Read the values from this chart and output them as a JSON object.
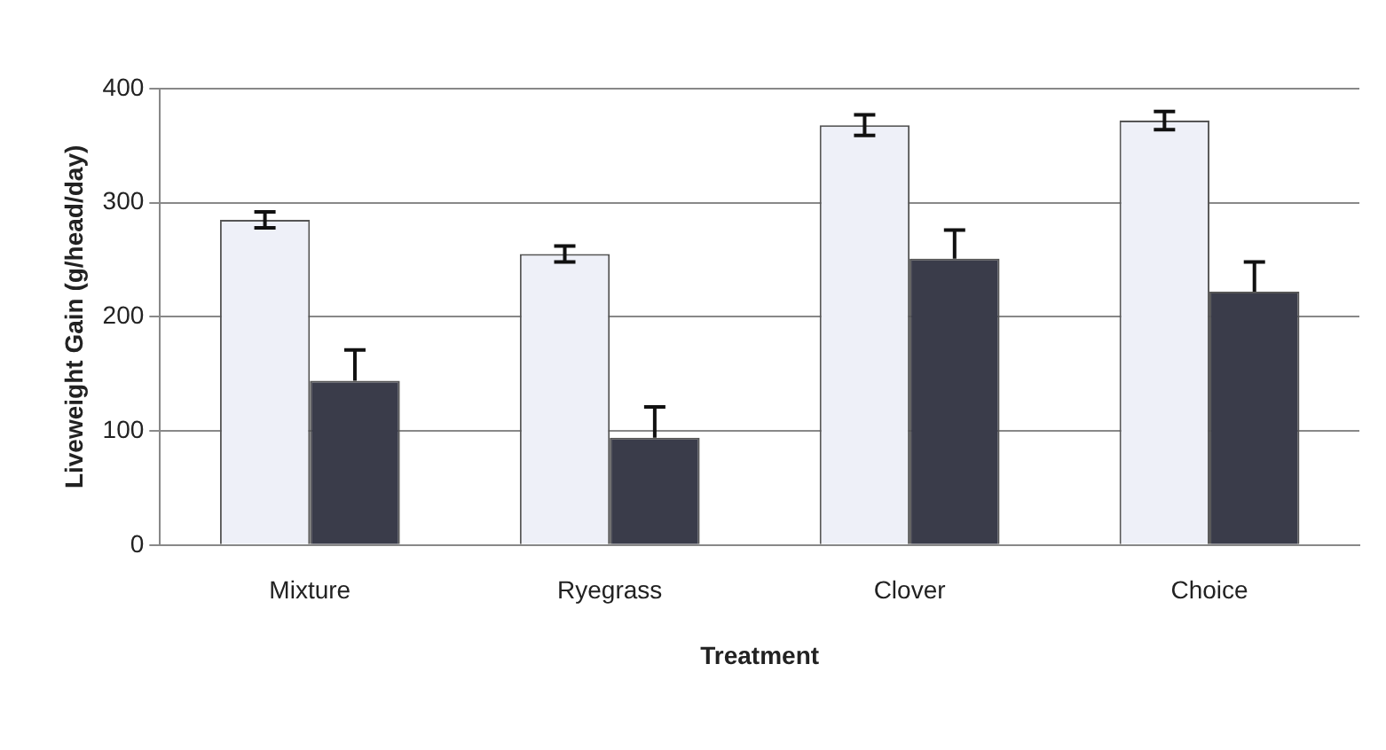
{
  "chart_data": {
    "type": "bar",
    "xlabel": "Treatment",
    "ylabel": "Liveweight Gain (g/head/day)",
    "categories": [
      "Mixture",
      "Ryegrass",
      "Clover",
      "Choice"
    ],
    "series": [
      {
        "color": "#eef0f8",
        "values": [
          285,
          255,
          368,
          372
        ],
        "errors": [
          7,
          7,
          9,
          8
        ]
      },
      {
        "color": "#3a3c4a",
        "values": [
          144,
          94,
          251,
          222
        ],
        "errors": [
          [
            144,
            171
          ],
          [
            94,
            121
          ],
          [
            251,
            276
          ],
          [
            222,
            248
          ]
        ]
      }
    ],
    "ylim": [
      0,
      400
    ],
    "yticks": [
      0,
      100,
      200,
      300,
      400
    ],
    "grid": "y",
    "legend": false
  }
}
